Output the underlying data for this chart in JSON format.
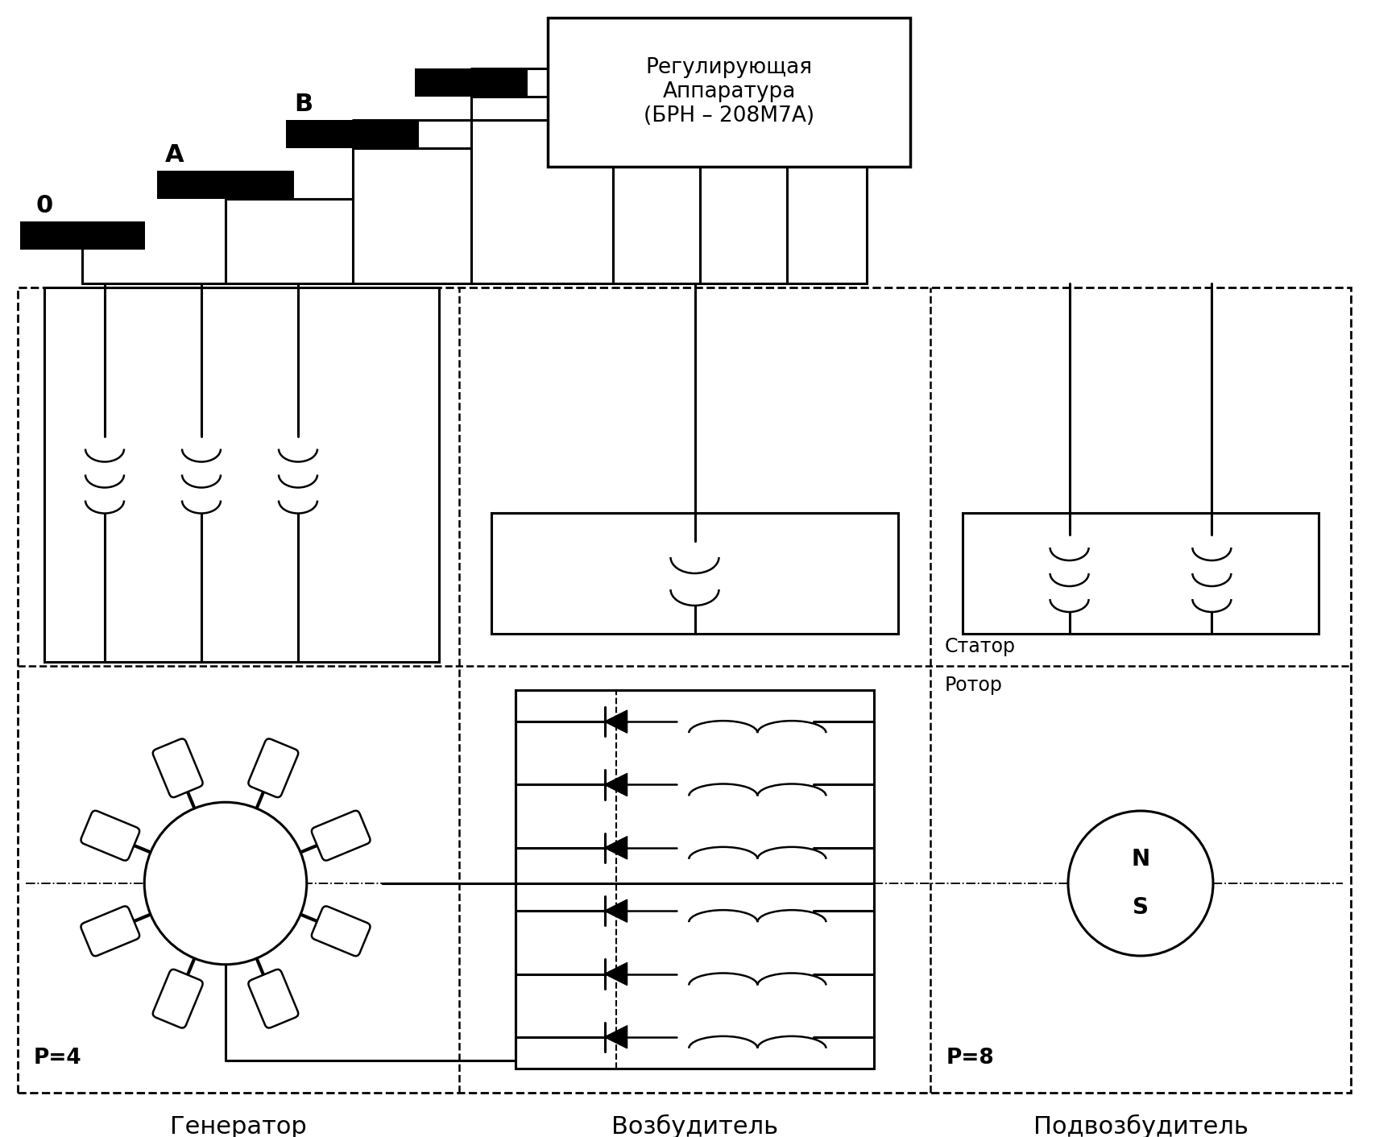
{
  "bg_color": "#ffffff",
  "line_color": "#000000",
  "text_reg": "Регулирующая\nАппаратура\n(БРН – 208М7А)",
  "label_0": "0",
  "label_A": "A",
  "label_B": "B",
  "label_stator": "Статор",
  "label_rotor": "Ротор",
  "label_p4": "P=4",
  "label_p8": "P=8",
  "label_generator": "Генератор",
  "label_exciter": "Возбудитель",
  "label_subexciter": "Подвозбудитель",
  "label_N": "N",
  "label_S": "S"
}
